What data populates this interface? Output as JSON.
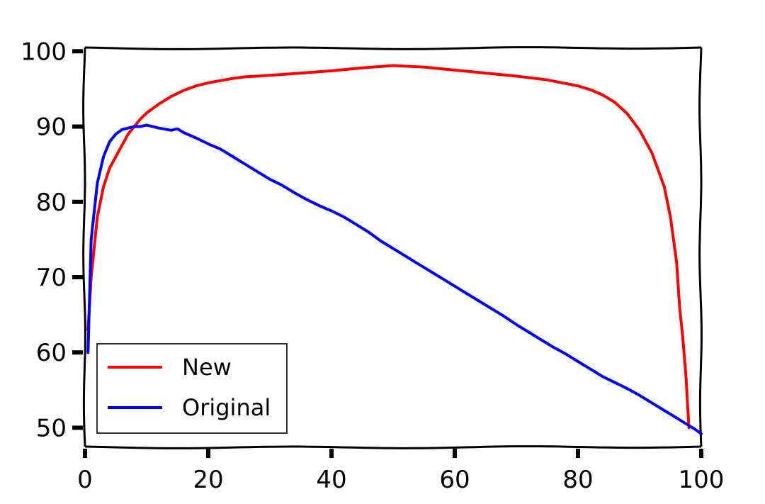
{
  "chart_data": {
    "type": "line",
    "title": "",
    "xlabel": "",
    "ylabel": "",
    "xlim": [
      0,
      100
    ],
    "ylim": [
      47.5,
      100.5
    ],
    "xticks": [
      0,
      20,
      40,
      60,
      80,
      100
    ],
    "yticks": [
      50,
      60,
      70,
      80,
      90,
      100
    ],
    "grid": false,
    "legend_position": "lower-left",
    "series": [
      {
        "name": "New",
        "color": "#ff0000",
        "x": [
          0.5,
          1,
          2,
          3,
          4,
          5,
          6,
          7,
          8,
          9,
          10,
          12,
          14,
          16,
          18,
          20,
          22,
          24,
          26,
          28,
          30,
          35,
          40,
          45,
          50,
          55,
          60,
          65,
          70,
          75,
          80,
          82,
          84,
          86,
          88,
          90,
          92,
          94,
          95,
          96,
          96.5,
          97,
          97.5,
          98
        ],
        "y": [
          63,
          70,
          78,
          82,
          84.5,
          86,
          87.5,
          89,
          90,
          91,
          91.8,
          93,
          94,
          94.8,
          95.4,
          95.8,
          96.1,
          96.4,
          96.6,
          96.7,
          96.8,
          97.1,
          97.4,
          97.8,
          98.1,
          97.9,
          97.5,
          97.1,
          96.7,
          96.2,
          95.4,
          94.9,
          94.2,
          93.2,
          91.7,
          89.5,
          86.5,
          82,
          78,
          72,
          66,
          62,
          57,
          50
        ]
      },
      {
        "name": "Original",
        "color": "#0000ff",
        "x": [
          0.5,
          1,
          2,
          3,
          4,
          5,
          6,
          7,
          8,
          9,
          10,
          12,
          14,
          15,
          16,
          18,
          20,
          22,
          24,
          26,
          28,
          30,
          32,
          34,
          36,
          38,
          40,
          42,
          44,
          46,
          48,
          50,
          52,
          54,
          56,
          58,
          60,
          62,
          64,
          66,
          68,
          70,
          72,
          74,
          76,
          78,
          80,
          82,
          84,
          86,
          88,
          90,
          92,
          94,
          96,
          98,
          99,
          100
        ],
        "y": [
          60,
          75,
          82.5,
          86,
          88,
          89,
          89.6,
          89.8,
          90,
          90,
          90.2,
          89.8,
          89.5,
          89.7,
          89.2,
          88.5,
          87.7,
          87,
          86,
          85,
          84,
          83,
          82.2,
          81.2,
          80.3,
          79.5,
          78.8,
          78,
          77,
          76,
          74.8,
          73.8,
          72.8,
          71.8,
          70.8,
          69.8,
          68.8,
          67.8,
          66.8,
          65.8,
          64.8,
          63.7,
          62.7,
          61.7,
          60.7,
          59.8,
          58.8,
          57.8,
          56.8,
          56,
          55.2,
          54.3,
          53.3,
          52.3,
          51.3,
          50.3,
          49.8,
          49.2
        ]
      }
    ]
  }
}
